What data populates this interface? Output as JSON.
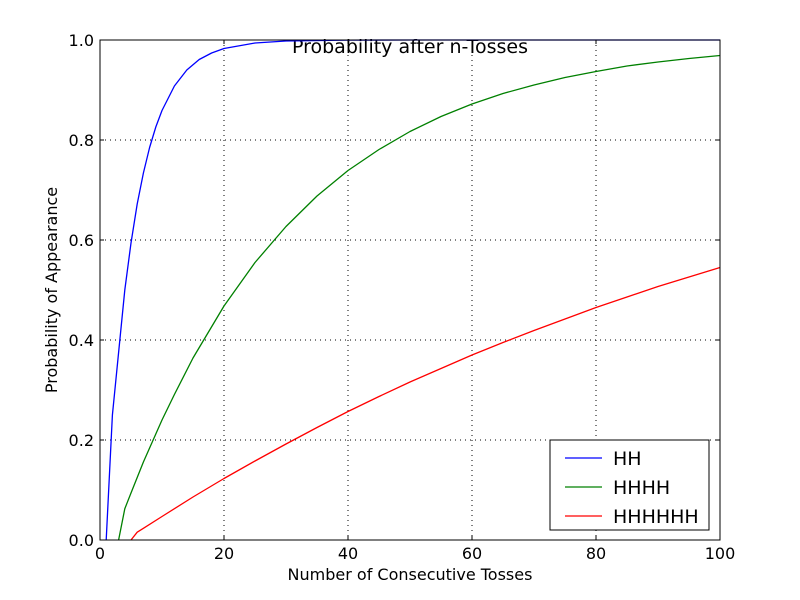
{
  "chart_data": {
    "type": "line",
    "title": "Probability after n-Tosses",
    "xlabel": "Number of Consecutive Tosses",
    "ylabel": "Probability of Appearance",
    "xlim": [
      0,
      100
    ],
    "ylim": [
      0,
      1.0
    ],
    "xticks": [
      0,
      20,
      40,
      60,
      80,
      100
    ],
    "yticks": [
      0.0,
      0.2,
      0.4,
      0.6,
      0.8,
      1.0
    ],
    "xtick_labels": [
      "0",
      "20",
      "40",
      "60",
      "80",
      "100"
    ],
    "ytick_labels": [
      "0.0",
      "0.2",
      "0.4",
      "0.6",
      "0.8",
      "1.0"
    ],
    "grid": true,
    "legend_position": "lower-right",
    "series": [
      {
        "name": "HH",
        "color": "#0000ff",
        "x": [
          1,
          2,
          3,
          4,
          5,
          6,
          7,
          8,
          9,
          10,
          12,
          14,
          16,
          18,
          20,
          25,
          30,
          40,
          50,
          60,
          70,
          80,
          90,
          100
        ],
        "y": [
          0,
          0.25,
          0.375,
          0.5,
          0.594,
          0.672,
          0.734,
          0.785,
          0.826,
          0.859,
          0.908,
          0.94,
          0.961,
          0.974,
          0.983,
          0.994,
          0.998,
          0.9998,
          1.0,
          1.0,
          1.0,
          1.0,
          1.0,
          1.0
        ]
      },
      {
        "name": "HHHH",
        "color": "#008000",
        "x": [
          3,
          4,
          5,
          6,
          7,
          8,
          10,
          12,
          15,
          20,
          25,
          30,
          35,
          40,
          45,
          50,
          55,
          60,
          65,
          70,
          75,
          80,
          85,
          90,
          95,
          100
        ],
        "y": [
          0,
          0.0625,
          0.094,
          0.125,
          0.156,
          0.184,
          0.24,
          0.291,
          0.364,
          0.468,
          0.555,
          0.627,
          0.688,
          0.739,
          0.781,
          0.817,
          0.847,
          0.872,
          0.893,
          0.91,
          0.925,
          0.937,
          0.948,
          0.956,
          0.963,
          0.969
        ]
      },
      {
        "name": "HHHHHH",
        "color": "#ff0000",
        "x": [
          5,
          6,
          7,
          10,
          15,
          20,
          25,
          30,
          35,
          40,
          45,
          50,
          55,
          60,
          65,
          70,
          75,
          80,
          85,
          90,
          95,
          100
        ],
        "y": [
          0,
          0.0156,
          0.0234,
          0.047,
          0.086,
          0.123,
          0.158,
          0.192,
          0.225,
          0.257,
          0.287,
          0.316,
          0.343,
          0.37,
          0.395,
          0.419,
          0.442,
          0.465,
          0.486,
          0.507,
          0.526,
          0.545
        ]
      }
    ]
  }
}
